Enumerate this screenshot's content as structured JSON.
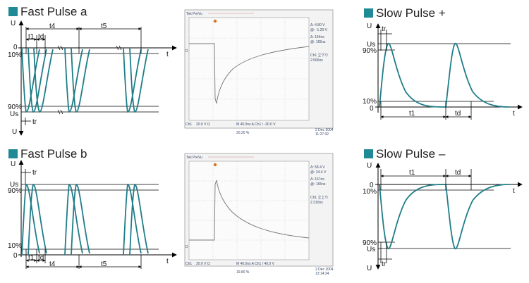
{
  "panels": {
    "fast_a": {
      "title": "Fast Pulse a",
      "axis_u": "U",
      "axis_t": "t",
      "axis_u_bottom": "U",
      "lvl_0": "0",
      "lvl_10": "10%",
      "lvl_90": "90%",
      "lvl_us": "Us",
      "t1": "t1",
      "td": "td",
      "t4": "t4",
      "t5": "t5",
      "tr": "tr"
    },
    "fast_b": {
      "title": "Fast Pulse b",
      "axis_u": "U",
      "axis_t": "t",
      "lvl_us": "Us",
      "lvl_90": "90%",
      "lvl_10": "10%",
      "lvl_0": "0",
      "tr": "tr",
      "t1": "t1",
      "td": "td",
      "t4": "t4",
      "t5": "t5"
    },
    "slow_plus": {
      "title": "Slow Pulse +",
      "axis_u": "U",
      "axis_t": "t",
      "lvl_us": "Us",
      "lvl_90": "90%",
      "lvl_10": "10%",
      "lvl_0": "0",
      "tr": "tr",
      "t1": "t1",
      "td": "td"
    },
    "slow_minus": {
      "title": "Slow Pulse –",
      "axis_u": "U",
      "axis_t": "t",
      "axis_u_bottom": "U",
      "lvl_0": "0",
      "lvl_10": "10%",
      "lvl_90": "90%",
      "lvl_us": "Us",
      "tr": "tr",
      "t1": "t1",
      "td": "td"
    }
  },
  "scopes": {
    "top": {
      "brand": "Tek PreVu",
      "ch_label": "Ch1",
      "r1": "Δ: 4.80 V",
      "r2": "@: -1.20 V",
      "r3": "Δ: 164ns",
      "r4": "@: 165ns",
      "info1": "Ch1 立下り",
      "info2": "2.566ns",
      "bot1": "20.0 V Ω",
      "bot2": "M 40.0ns A Ch1 \\ -30.0 V",
      "bot3": "20.20 %",
      "date1": "2 Dec 2004",
      "date2": "11:27:32"
    },
    "bottom": {
      "brand": "Tek PreVu",
      "ch_label": "Ch1",
      "r1": "Δ: 58.4 V",
      "r2": "@: 24.4 V",
      "r3": "Δ: 167ns",
      "r4": "@: 165ns",
      "info1": "Ch1 立上り",
      "info2": "2.310ns",
      "bot1": "20.0 V Ω",
      "bot2": "M 40.0ns A Ch1 / 40.0 V",
      "bot3": "19.80 %",
      "date1": "2 Dec 2004",
      "date2": "13:14:24"
    }
  },
  "colors": {
    "accent": "#1f8a96",
    "wave": "#1f7d88"
  }
}
